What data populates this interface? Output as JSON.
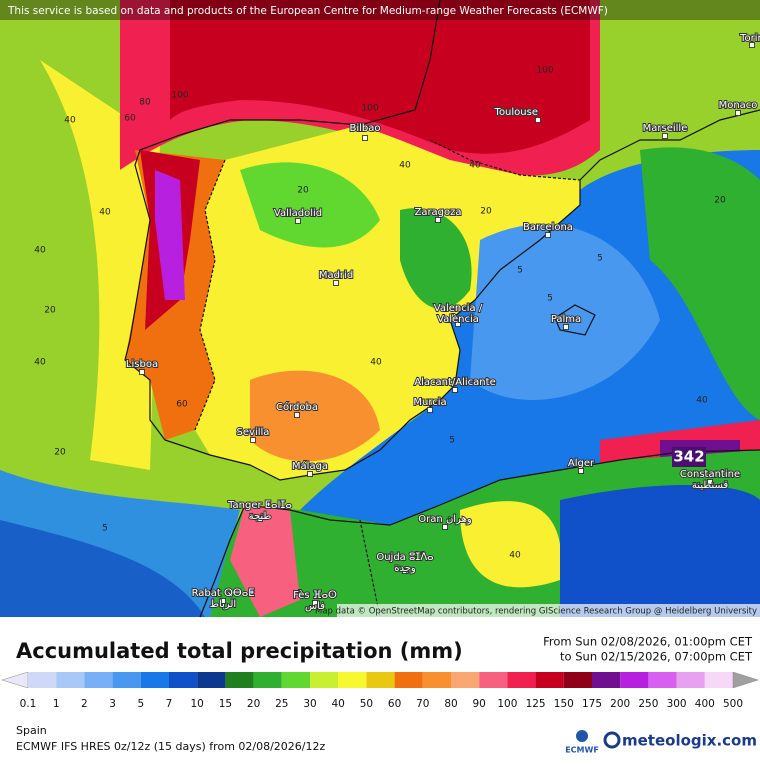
{
  "banner": "This service is based on data and products of the European Centre for Medium-range Weather Forecasts (ECMWF)",
  "map": {
    "cities": [
      {
        "name": "Bilbao"
      },
      {
        "name": "Toulouse"
      },
      {
        "name": "Marseille"
      },
      {
        "name": "Monaco"
      },
      {
        "name": "Torin"
      },
      {
        "name": "Valladolid"
      },
      {
        "name": "Zaragoza"
      },
      {
        "name": "Barcelona"
      },
      {
        "name": "Madrid"
      },
      {
        "name": "Valencia /",
        "name2": "València"
      },
      {
        "name": "Palma"
      },
      {
        "name": "Lisboa"
      },
      {
        "name": "Alacant/Alicante"
      },
      {
        "name": "Murcia"
      },
      {
        "name": "Córdoba"
      },
      {
        "name": "Sevilla"
      },
      {
        "name": "Málaga"
      },
      {
        "name": "Alger"
      },
      {
        "name": "Constantine",
        "name2": "قسنطينة"
      },
      {
        "name": "Tanger ⵟⴰⵏⵊⴰ",
        "name2": "طنجة"
      },
      {
        "name": "Oran وهران"
      },
      {
        "name": "Oujda ⵓⵊⴷⴰ",
        "name2": "وجدة"
      },
      {
        "name": "Rabat ⵕⴱⴰⵟ",
        "name2": "الرباط"
      },
      {
        "name": "Fès ⴼⴰⵙ",
        "name2": "فاس"
      }
    ],
    "max_label": "342",
    "contour_labels": [
      40,
      60,
      80,
      100,
      40,
      20,
      40,
      20,
      40,
      60,
      40,
      5,
      5,
      5,
      5,
      20,
      5,
      20,
      40,
      40,
      20,
      40,
      40,
      100,
      100,
      20
    ],
    "attribution": "Map data © OpenStreetMap contributors, rendering GIScience Research Group @ Heidelberg University"
  },
  "legend": {
    "title": "Accumulated total precipitation (mm)",
    "period_from": "From Sun 02/08/2026, 01:00pm CET",
    "period_to": "to Sun 02/15/2026, 07:00pm CET",
    "labels": [
      0.1,
      1,
      2,
      3,
      5,
      7,
      10,
      15,
      20,
      25,
      30,
      40,
      50,
      60,
      70,
      80,
      90,
      100,
      125,
      150,
      175,
      200,
      250,
      300,
      400,
      500
    ],
    "colors": [
      "#e8e8f8",
      "#d0d8f8",
      "#a8c8f8",
      "#78b0f8",
      "#4898f0",
      "#1878e8",
      "#1050c8",
      "#0c3890",
      "#208020",
      "#30b030",
      "#60d830",
      "#c8f030",
      "#f8f830",
      "#e8c810",
      "#f07010",
      "#f89030",
      "#f8a870",
      "#f86080",
      "#f02050",
      "#c80020",
      "#900018",
      "#701090",
      "#b820e0",
      "#d860f0",
      "#e8a0f0",
      "#f8d8f8",
      "#d0d0d0",
      "#a0a0a0"
    ]
  },
  "footer": {
    "region": "Spain",
    "model": "ECMWF IFS HRES 0z/12z (15 days) from 02/08/2026/12z",
    "ecmwf": "ECMWF",
    "brand": "meteologix.com"
  }
}
